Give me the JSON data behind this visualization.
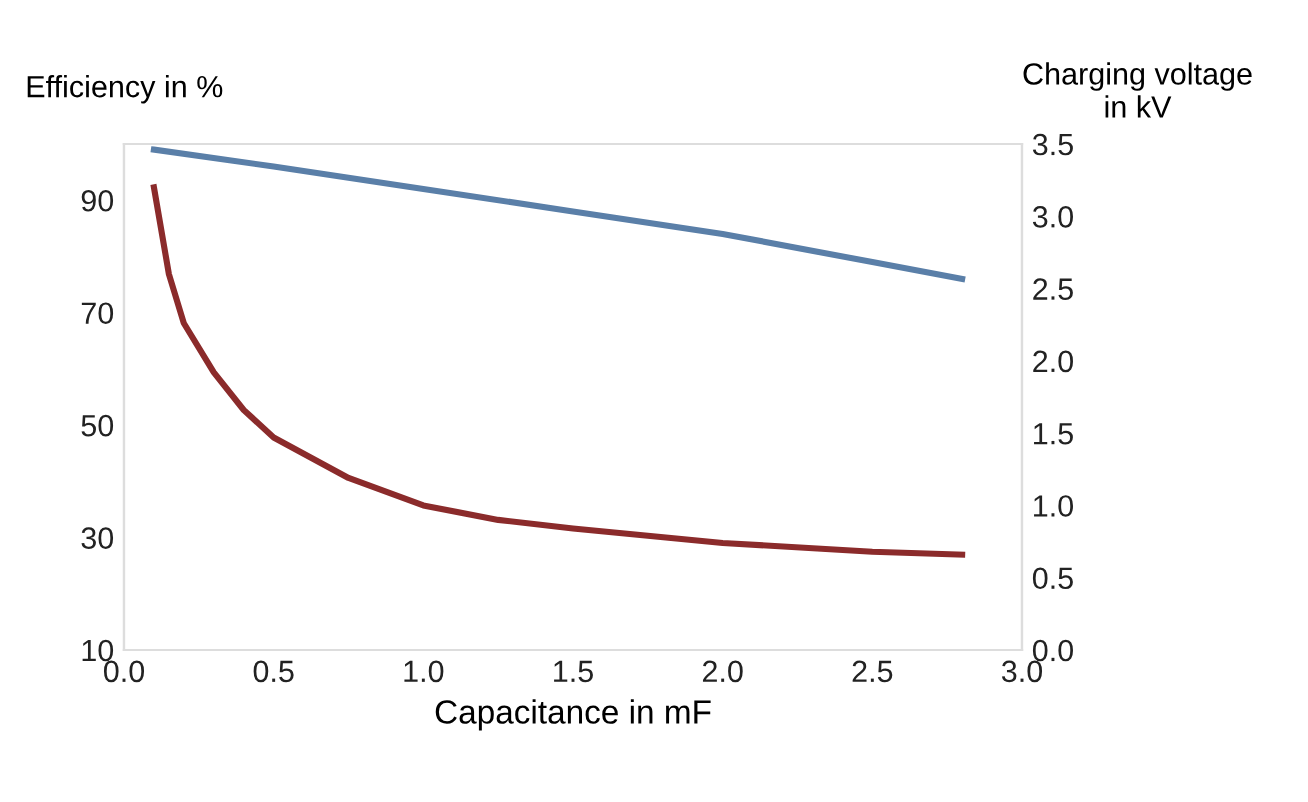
{
  "chart_data": {
    "type": "line",
    "xlabel": "Capacitance in mF",
    "ylabel": "Efficiency in %",
    "y2label": "Charging voltage\nin kV",
    "xlim": [
      0.0,
      3.0
    ],
    "xticks": [
      {
        "value": 0,
        "label": "0.0"
      },
      0.5,
      {
        "value": 1,
        "label": "1.0"
      },
      1.5,
      {
        "value": 2,
        "label": "2.0"
      },
      2.5,
      {
        "value": 3,
        "label": "3.0"
      }
    ],
    "ylim": [
      10,
      100
    ],
    "yticks": [
      10,
      30,
      50,
      70,
      90
    ],
    "y2lim": [
      0,
      3.5
    ],
    "y2ticks": [
      {
        "value": 0,
        "label": "0.0"
      },
      0.5,
      {
        "value": 1,
        "label": "1.0"
      },
      1.5,
      {
        "value": 2,
        "label": "2.0"
      },
      2.5,
      {
        "value": 3,
        "label": "3.0"
      },
      3.5
    ],
    "grid": false,
    "legend": false,
    "marker": "none",
    "line_style": "solid",
    "series": [
      {
        "color": "#5a7fa8",
        "x": [
          0.1,
          0.5,
          1.0,
          1.5,
          2.0,
          2.5,
          2.8
        ],
        "values": [
          99,
          96,
          92,
          88,
          84,
          79,
          76
        ]
      },
      {
        "color": "#8b2b2b",
        "axis": "y2",
        "x": [
          0.1,
          0.15,
          0.2,
          0.3,
          0.4,
          0.5,
          0.75,
          1.0,
          1.25,
          1.5,
          2.0,
          2.5,
          2.8
        ],
        "values": [
          3.2,
          2.6,
          2.26,
          1.92,
          1.66,
          1.47,
          1.19,
          1.0,
          0.9,
          0.84,
          0.74,
          0.68,
          0.66
        ]
      }
    ]
  }
}
